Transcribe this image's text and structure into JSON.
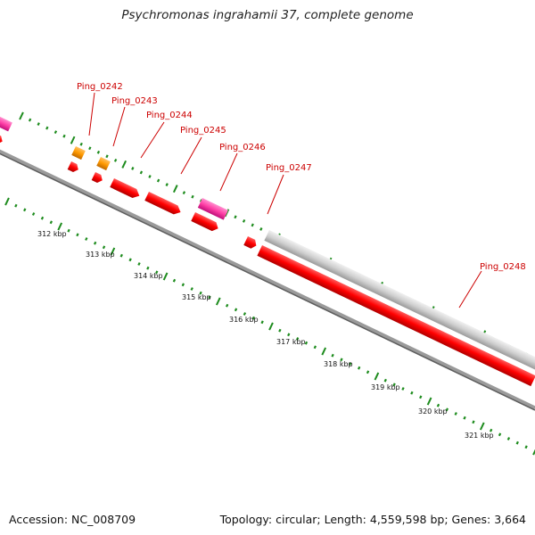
{
  "title": "Psychromonas ingrahamii 37, complete genome",
  "footer": {
    "accession": "Accession: NC_008709",
    "summary": "Topology: circular; Length: 4,559,598 bp; Genes: 3,664"
  },
  "colors": {
    "gene_red": "#ff0000",
    "gene_pink": "#ff3fa6",
    "gene_orange": "#ff9a00",
    "gene_gray": "#c8c8c8",
    "tick_green": "#1e8c1e",
    "label_red": "#cc0000",
    "backbone": "#777777"
  },
  "genes": [
    {
      "locus": "Ping_0242",
      "color": "orange"
    },
    {
      "locus": "Ping_0243",
      "color": "orange"
    },
    {
      "locus": "Ping_0244",
      "color": "red"
    },
    {
      "locus": "Ping_0245",
      "color": "red"
    },
    {
      "locus": "Ping_0246",
      "color": "pink"
    },
    {
      "locus": "Ping_0247",
      "color": "gray"
    },
    {
      "locus": "Ping_0248",
      "color": "gray"
    }
  ],
  "scale_labels": [
    "312 kbp",
    "313 kbp",
    "314 kbp",
    "315 kbp",
    "316 kbp",
    "317 kbp",
    "318 kbp",
    "319 kbp",
    "320 kbp",
    "321 kbp"
  ]
}
